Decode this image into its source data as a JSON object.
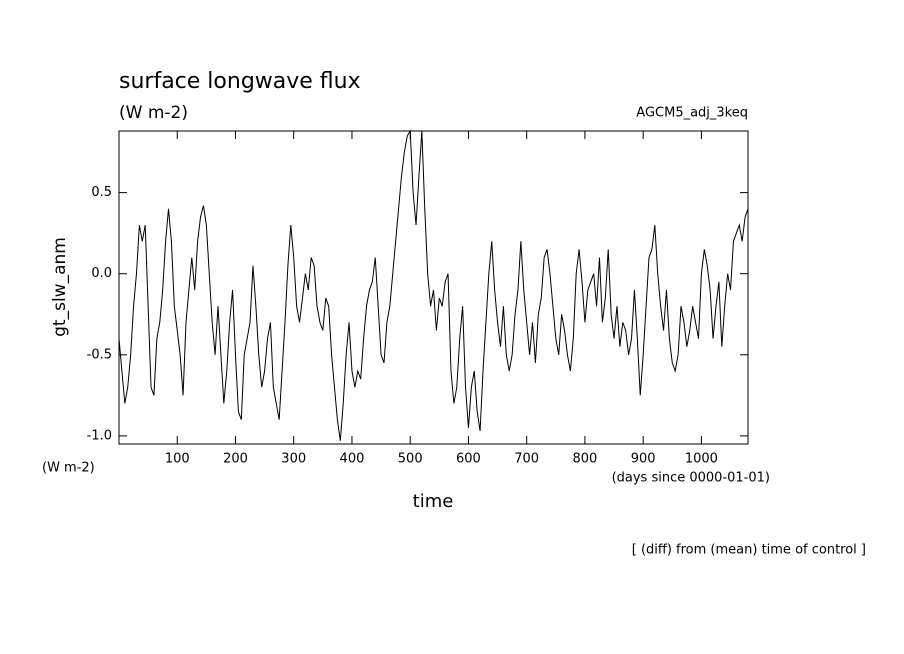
{
  "chart_data": {
    "type": "line",
    "title": "surface longwave flux",
    "units": "(W m-2)",
    "experiment": "AGCM5_adj_3keq",
    "ylabel": "gt_slw_anm",
    "xlabel": "time",
    "xunits": "(days since 0000-01-01)",
    "footer": "[ (diff) from (mean) time of control ]",
    "color": "#000000",
    "xlim": [
      0,
      1080
    ],
    "ylim": [
      -1.05,
      0.88
    ],
    "xticks": [
      100,
      200,
      300,
      400,
      500,
      600,
      700,
      800,
      900,
      1000
    ],
    "yticks": [
      {
        "value": -1.0,
        "label": "-1.0"
      },
      {
        "value": -0.5,
        "label": "-0.5"
      },
      {
        "value": 0,
        "label": "0.0"
      },
      0.5
    ],
    "x": [
      0,
      5,
      10,
      15,
      20,
      25,
      30,
      35,
      40,
      45,
      50,
      55,
      60,
      65,
      70,
      75,
      80,
      85,
      90,
      95,
      100,
      105,
      110,
      115,
      120,
      125,
      130,
      135,
      140,
      145,
      150,
      155,
      160,
      165,
      170,
      175,
      180,
      185,
      190,
      195,
      200,
      205,
      210,
      215,
      220,
      225,
      230,
      235,
      240,
      245,
      250,
      255,
      260,
      265,
      270,
      275,
      280,
      285,
      290,
      295,
      300,
      305,
      310,
      315,
      320,
      325,
      330,
      335,
      340,
      345,
      350,
      355,
      360,
      365,
      370,
      375,
      380,
      385,
      390,
      395,
      400,
      405,
      410,
      415,
      420,
      425,
      430,
      435,
      440,
      445,
      450,
      455,
      460,
      465,
      470,
      475,
      480,
      485,
      490,
      495,
      500,
      505,
      510,
      515,
      520,
      525,
      530,
      535,
      540,
      545,
      550,
      555,
      560,
      565,
      570,
      575,
      580,
      585,
      590,
      595,
      600,
      605,
      610,
      615,
      620,
      625,
      630,
      635,
      640,
      645,
      650,
      655,
      660,
      665,
      670,
      675,
      680,
      685,
      690,
      695,
      700,
      705,
      710,
      715,
      720,
      725,
      730,
      735,
      740,
      745,
      750,
      755,
      760,
      765,
      770,
      775,
      780,
      785,
      790,
      795,
      800,
      805,
      810,
      815,
      820,
      825,
      830,
      835,
      840,
      845,
      850,
      855,
      860,
      865,
      870,
      875,
      880,
      885,
      890,
      895,
      900,
      905,
      910,
      915,
      920,
      925,
      930,
      935,
      940,
      945,
      950,
      955,
      960,
      965,
      970,
      975,
      980,
      985,
      990,
      995,
      1000,
      1005,
      1010,
      1015,
      1020,
      1025,
      1030,
      1035,
      1040,
      1045,
      1050,
      1055,
      1060,
      1065,
      1070,
      1075,
      1080
    ],
    "values": [
      -0.4,
      -0.6,
      -0.8,
      -0.7,
      -0.5,
      -0.2,
      0.0,
      0.3,
      0.2,
      0.3,
      -0.2,
      -0.7,
      -0.75,
      -0.4,
      -0.3,
      -0.1,
      0.2,
      0.4,
      0.2,
      -0.2,
      -0.35,
      -0.5,
      -0.75,
      -0.3,
      -0.1,
      0.1,
      -0.1,
      0.2,
      0.35,
      0.42,
      0.3,
      0.0,
      -0.3,
      -0.5,
      -0.2,
      -0.5,
      -0.8,
      -0.6,
      -0.3,
      -0.1,
      -0.5,
      -0.85,
      -0.9,
      -0.5,
      -0.4,
      -0.3,
      0.05,
      -0.2,
      -0.5,
      -0.7,
      -0.6,
      -0.4,
      -0.3,
      -0.7,
      -0.8,
      -0.9,
      -0.6,
      -0.3,
      0.05,
      0.3,
      0.1,
      -0.2,
      -0.3,
      -0.15,
      0.0,
      -0.1,
      0.1,
      0.05,
      -0.2,
      -0.3,
      -0.35,
      -0.15,
      -0.2,
      -0.5,
      -0.7,
      -0.9,
      -1.03,
      -0.8,
      -0.5,
      -0.3,
      -0.6,
      -0.7,
      -0.6,
      -0.65,
      -0.4,
      -0.2,
      -0.1,
      -0.05,
      0.1,
      -0.2,
      -0.5,
      -0.55,
      -0.3,
      -0.2,
      0.0,
      0.2,
      0.4,
      0.6,
      0.75,
      0.85,
      0.88,
      0.5,
      0.3,
      0.6,
      0.88,
      0.4,
      0.0,
      -0.2,
      -0.1,
      -0.35,
      -0.15,
      -0.2,
      -0.05,
      0.0,
      -0.6,
      -0.8,
      -0.7,
      -0.4,
      -0.2,
      -0.7,
      -0.95,
      -0.7,
      -0.6,
      -0.85,
      -0.97,
      -0.6,
      -0.3,
      0.0,
      0.2,
      -0.1,
      -0.3,
      -0.45,
      -0.2,
      -0.5,
      -0.6,
      -0.5,
      -0.25,
      -0.1,
      0.2,
      -0.1,
      -0.3,
      -0.5,
      -0.3,
      -0.55,
      -0.25,
      -0.15,
      0.1,
      0.15,
      0.0,
      -0.2,
      -0.4,
      -0.5,
      -0.25,
      -0.35,
      -0.5,
      -0.6,
      -0.4,
      0.0,
      0.15,
      -0.05,
      -0.3,
      -0.1,
      -0.05,
      0.0,
      -0.2,
      0.1,
      -0.3,
      -0.15,
      0.15,
      -0.25,
      -0.4,
      -0.2,
      -0.45,
      -0.3,
      -0.35,
      -0.5,
      -0.4,
      -0.1,
      -0.4,
      -0.75,
      -0.5,
      -0.2,
      0.1,
      0.15,
      0.3,
      0.0,
      -0.2,
      -0.35,
      -0.1,
      -0.4,
      -0.55,
      -0.6,
      -0.5,
      -0.2,
      -0.3,
      -0.45,
      -0.35,
      -0.2,
      -0.3,
      -0.4,
      0.0,
      0.15,
      0.05,
      -0.1,
      -0.4,
      -0.2,
      -0.05,
      -0.45,
      -0.2,
      0.0,
      -0.1,
      0.2,
      0.25,
      0.3,
      0.2,
      0.35,
      0.4
    ]
  }
}
